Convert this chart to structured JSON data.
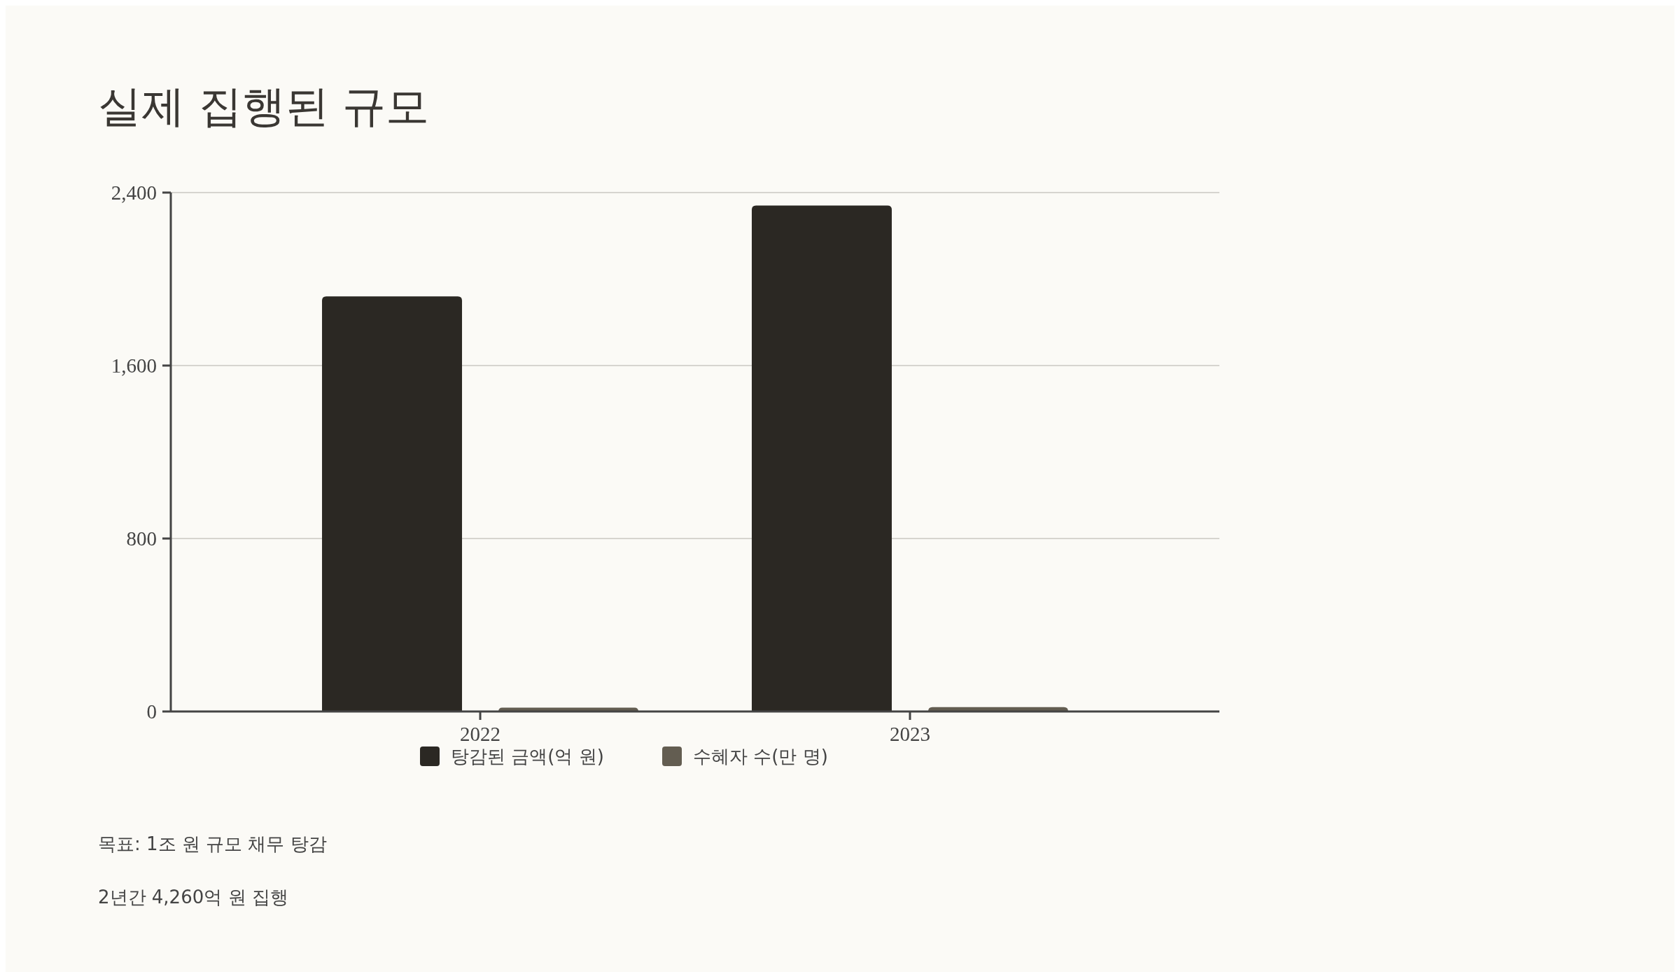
{
  "chart_data": {
    "type": "bar",
    "title": "실제 집행된 규모",
    "categories": [
      "2022",
      "2023"
    ],
    "series": [
      {
        "name": "탕감된 금액(억 원)",
        "color": "#2b2823",
        "values": [
          1920,
          2340
        ]
      },
      {
        "name": "수혜자 수(만 명)",
        "color": "#635d51",
        "values": [
          18,
          20
        ]
      }
    ],
    "ylim": [
      0,
      2400
    ],
    "yticks": [
      0,
      {
        "value": 800,
        "label": "800"
      },
      {
        "value": 1600,
        "label": "1,600"
      },
      {
        "value": 2400,
        "label": "2,400"
      }
    ],
    "grid": "y",
    "legend": "bottom",
    "annotations": [
      "목표: 1조 원 규모 채무 탕감",
      "2년간 4,260억 원 집행"
    ]
  }
}
